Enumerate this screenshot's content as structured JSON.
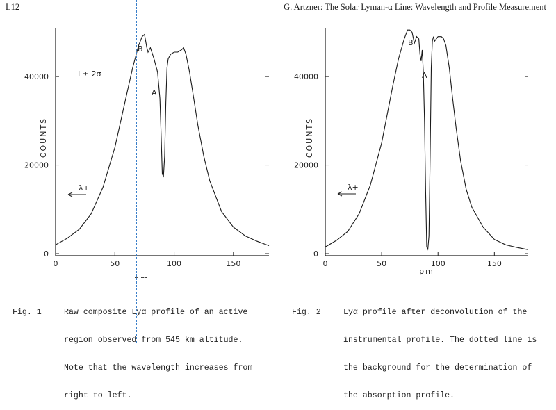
{
  "header": {
    "left": "L12",
    "right": "G. Artzner: The Solar Lyman-α Line: Wavelength and Profile Measurement"
  },
  "figures": [
    {
      "caption_number": "Fig. 1",
      "caption_lines": [
        "Raw composite Lyα profile of an active",
        "region observed from 545 km altitude.",
        "Note that the wavelength increases from",
        "right to left."
      ],
      "annotations": {
        "error_bar": "I ± 2σ",
        "label_a": "A",
        "label_b": "B",
        "arrow": "λ+"
      }
    },
    {
      "caption_number": "Fig. 2",
      "caption_lines": [
        "Lyα profile after deconvolution of the",
        "instrumental profile. The dotted line is",
        "the background for the determination of",
        "the absorption profile."
      ],
      "annotations": {
        "label_a": "A",
        "label_b": "B",
        "arrow": "λ+"
      }
    }
  ],
  "chart_data": [
    {
      "type": "line",
      "xlabel": "pm",
      "ylabel": "COUNTS",
      "xlim": [
        0,
        180
      ],
      "ylim": [
        0,
        51000
      ],
      "x_ticks": [
        0,
        50,
        100,
        150
      ],
      "y_ticks": [
        0,
        20000,
        40000
      ],
      "grid": false,
      "series": [
        {
          "x": [
            0,
            10,
            20,
            30,
            40,
            50,
            60,
            65,
            70,
            73,
            75,
            76,
            77,
            78,
            80,
            83,
            86,
            88,
            89,
            90,
            91,
            92,
            93,
            94,
            95,
            97,
            100,
            103,
            106,
            108,
            110,
            113,
            116,
            120,
            125,
            130,
            140,
            150,
            160,
            170,
            180
          ],
          "y": [
            2000,
            3500,
            5500,
            9000,
            15000,
            24000,
            36000,
            42000,
            47000,
            49000,
            49500,
            48000,
            46500,
            45500,
            46500,
            44000,
            41000,
            35000,
            27000,
            18000,
            17500,
            22000,
            34000,
            42000,
            44000,
            45000,
            45500,
            45500,
            46000,
            46500,
            45000,
            41000,
            36000,
            29000,
            22000,
            16500,
            9500,
            6000,
            4000,
            2800,
            1800
          ]
        }
      ]
    },
    {
      "type": "line",
      "xlabel": "pm",
      "ylabel": "COUNTS",
      "xlim": [
        0,
        180
      ],
      "ylim": [
        0,
        51000
      ],
      "x_ticks": [
        0,
        50,
        100,
        150
      ],
      "y_ticks": [
        0,
        20000,
        40000
      ],
      "grid": false,
      "series": [
        {
          "x": [
            0,
            10,
            20,
            30,
            40,
            50,
            60,
            65,
            70,
            73,
            75,
            77,
            79,
            81,
            83,
            84,
            85,
            86,
            87,
            88,
            89,
            90,
            91,
            92,
            93,
            94,
            95,
            96,
            97,
            100,
            103,
            105,
            107,
            110,
            113,
            116,
            120,
            125,
            130,
            140,
            150,
            160,
            170,
            180
          ],
          "y": [
            1500,
            3000,
            5000,
            9000,
            15500,
            25000,
            38000,
            44000,
            48500,
            50500,
            50500,
            50000,
            47500,
            49000,
            48500,
            45000,
            43500,
            46000,
            41000,
            30000,
            14000,
            1500,
            1000,
            4000,
            22000,
            42000,
            48000,
            49000,
            48000,
            49000,
            49000,
            48500,
            47000,
            42000,
            35000,
            28500,
            21000,
            14500,
            10500,
            6000,
            3200,
            2000,
            1400,
            900
          ]
        }
      ]
    }
  ]
}
